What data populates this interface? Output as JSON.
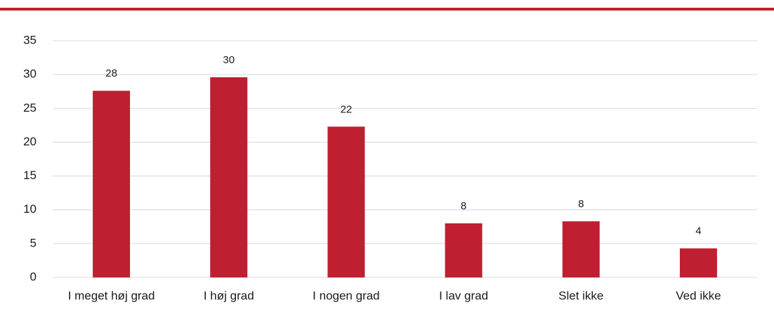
{
  "chart_data": {
    "type": "bar",
    "categories": [
      "I meget høj grad",
      "I høj grad",
      "I nogen grad",
      "I lav grad",
      "Slet ikke",
      "Ved ikke"
    ],
    "values": [
      27.6,
      29.6,
      22.3,
      8.0,
      8.3,
      4.3
    ],
    "value_labels": [
      "28",
      "30",
      "22",
      "8",
      "8",
      "4"
    ],
    "color": "#c01f32",
    "ylim": [
      0,
      35
    ],
    "yticks": [
      0,
      5,
      10,
      15,
      20,
      25,
      30,
      35
    ],
    "grid": true
  }
}
